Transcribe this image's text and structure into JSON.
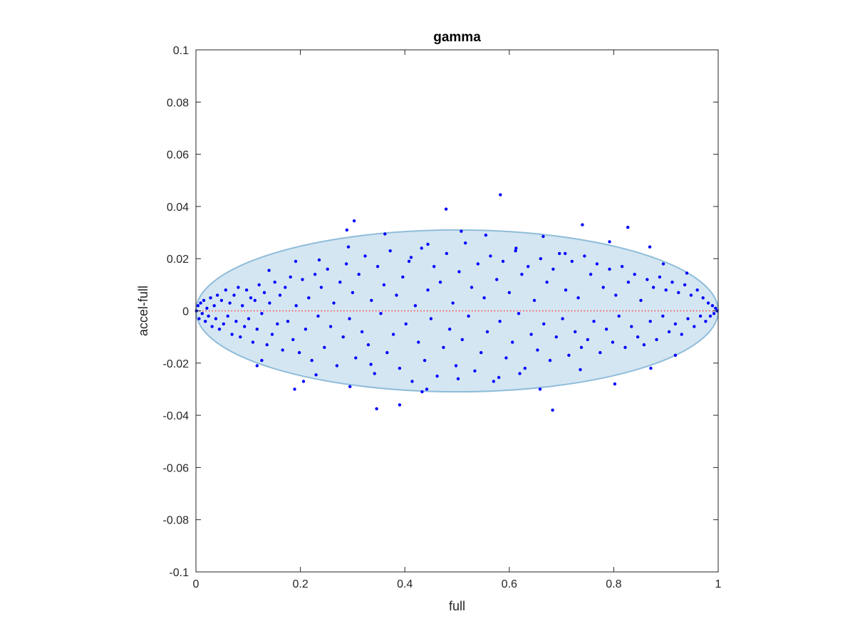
{
  "chart_data": {
    "type": "scatter",
    "title": "gamma",
    "xlabel": "full",
    "ylabel": "accel-full",
    "xlim": [
      0,
      1
    ],
    "ylim": [
      -0.1,
      0.1
    ],
    "x_ticks": [
      "0",
      "0.2",
      "0.4",
      "0.6",
      "0.8",
      "1"
    ],
    "y_ticks": [
      "0.1",
      "0.08",
      "0.06",
      "0.04",
      "0.02",
      "0",
      "-0.02",
      "-0.04",
      "-0.06",
      "-0.08",
      "-0.1"
    ],
    "grid": false,
    "colors": {
      "points": "#0000ff",
      "ellipse_fill": "#d4e6f2",
      "ellipse_edge": "#8fbdd9",
      "zero_line": "#ff3333"
    },
    "envelope_ellipse": {
      "center": [
        0.5,
        0.0
      ],
      "semi_x": 0.5,
      "semi_y": 0.031
    },
    "reference_line": {
      "y": 0,
      "x_range": [
        0,
        1
      ],
      "style": "dotted"
    },
    "series": [
      {
        "points": [
          [
            0.583,
            0.0445
          ],
          [
            0.479,
            0.039
          ],
          [
            0.303,
            0.0345
          ],
          [
            0.289,
            0.031
          ],
          [
            0.827,
            0.032
          ],
          [
            0.74,
            0.033
          ],
          [
            0.362,
            0.0295
          ],
          [
            0.508,
            0.0305
          ],
          [
            0.555,
            0.029
          ],
          [
            0.792,
            0.0265
          ],
          [
            0.869,
            0.0245
          ],
          [
            0.665,
            0.0285
          ],
          [
            0.444,
            0.0255
          ],
          [
            0.292,
            0.0245
          ],
          [
            0.191,
            0.019
          ],
          [
            0.14,
            0.0155
          ],
          [
            0.895,
            0.018
          ],
          [
            0.94,
            0.0145
          ],
          [
            0.707,
            0.022
          ],
          [
            0.613,
            0.024
          ],
          [
            0.412,
            0.0205
          ],
          [
            0.236,
            0.0195
          ],
          [
            0.346,
            -0.0375
          ],
          [
            0.39,
            -0.036
          ],
          [
            0.189,
            -0.03
          ],
          [
            0.206,
            -0.027
          ],
          [
            0.295,
            -0.029
          ],
          [
            0.433,
            -0.031
          ],
          [
            0.442,
            -0.03
          ],
          [
            0.659,
            -0.03
          ],
          [
            0.683,
            -0.038
          ],
          [
            0.802,
            -0.028
          ],
          [
            0.736,
            -0.0225
          ],
          [
            0.871,
            -0.022
          ],
          [
            0.918,
            -0.017
          ],
          [
            0.117,
            -0.021
          ],
          [
            0.126,
            -0.019
          ],
          [
            0.23,
            -0.0245
          ],
          [
            0.335,
            -0.0205
          ],
          [
            0.58,
            -0.0255
          ],
          [
            0.502,
            -0.026
          ],
          [
            0.62,
            -0.024
          ],
          [
            0.001,
            0.0
          ],
          [
            0.004,
            0.002
          ],
          [
            0.006,
            -0.003
          ],
          [
            0.009,
            0.003
          ],
          [
            0.012,
            -0.001
          ],
          [
            0.015,
            0.004
          ],
          [
            0.018,
            -0.004
          ],
          [
            0.021,
            0.001
          ],
          [
            0.024,
            -0.002
          ],
          [
            0.028,
            0.005
          ],
          [
            0.031,
            -0.006
          ],
          [
            0.035,
            0.002
          ],
          [
            0.038,
            -0.003
          ],
          [
            0.041,
            0.006
          ],
          [
            0.045,
            -0.007
          ],
          [
            0.049,
            0.004
          ],
          [
            0.053,
            -0.005
          ],
          [
            0.057,
            0.008
          ],
          [
            0.061,
            -0.002
          ],
          [
            0.065,
            0.003
          ],
          [
            0.069,
            -0.009
          ],
          [
            0.073,
            0.006
          ],
          [
            0.077,
            -0.004
          ],
          [
            0.081,
            0.009
          ],
          [
            0.085,
            -0.01
          ],
          [
            0.089,
            0.002
          ],
          [
            0.093,
            -0.006
          ],
          [
            0.097,
            0.008
          ],
          [
            0.101,
            -0.003
          ],
          [
            0.105,
            0.005
          ],
          [
            0.109,
            -0.012
          ],
          [
            0.113,
            0.004
          ],
          [
            0.117,
            -0.007
          ],
          [
            0.121,
            0.01
          ],
          [
            0.126,
            -0.001
          ],
          [
            0.131,
            0.007
          ],
          [
            0.136,
            -0.013
          ],
          [
            0.141,
            0.003
          ],
          [
            0.146,
            -0.009
          ],
          [
            0.151,
            0.011
          ],
          [
            0.156,
            -0.005
          ],
          [
            0.161,
            0.006
          ],
          [
            0.166,
            -0.015
          ],
          [
            0.171,
            0.009
          ],
          [
            0.176,
            -0.004
          ],
          [
            0.181,
            0.013
          ],
          [
            0.186,
            -0.011
          ],
          [
            0.192,
            0.002
          ],
          [
            0.198,
            -0.016
          ],
          [
            0.204,
            0.012
          ],
          [
            0.21,
            -0.007
          ],
          [
            0.216,
            0.005
          ],
          [
            0.222,
            -0.019
          ],
          [
            0.228,
            0.014
          ],
          [
            0.234,
            -0.002
          ],
          [
            0.24,
            0.009
          ],
          [
            0.246,
            -0.014
          ],
          [
            0.252,
            0.016
          ],
          [
            0.258,
            -0.006
          ],
          [
            0.264,
            0.003
          ],
          [
            0.27,
            -0.021
          ],
          [
            0.276,
            0.011
          ],
          [
            0.282,
            -0.01
          ],
          [
            0.288,
            0.018
          ],
          [
            0.294,
            -0.003
          ],
          [
            0.3,
            0.007
          ],
          [
            0.306,
            -0.018
          ],
          [
            0.312,
            0.014
          ],
          [
            0.318,
            -0.008
          ],
          [
            0.324,
            0.021
          ],
          [
            0.33,
            -0.013
          ],
          [
            0.336,
            0.004
          ],
          [
            0.342,
            -0.024
          ],
          [
            0.348,
            0.017
          ],
          [
            0.354,
            -0.001
          ],
          [
            0.36,
            0.01
          ],
          [
            0.366,
            -0.016
          ],
          [
            0.372,
            0.023
          ],
          [
            0.378,
            -0.009
          ],
          [
            0.384,
            0.006
          ],
          [
            0.39,
            -0.022
          ],
          [
            0.396,
            0.013
          ],
          [
            0.402,
            -0.005
          ],
          [
            0.408,
            0.019
          ],
          [
            0.414,
            -0.027
          ],
          [
            0.42,
            0.002
          ],
          [
            0.426,
            -0.012
          ],
          [
            0.432,
            0.024
          ],
          [
            0.438,
            -0.019
          ],
          [
            0.444,
            0.008
          ],
          [
            0.45,
            -0.003
          ],
          [
            0.456,
            0.017
          ],
          [
            0.462,
            -0.025
          ],
          [
            0.468,
            0.011
          ],
          [
            0.474,
            -0.014
          ],
          [
            0.48,
            0.022
          ],
          [
            0.486,
            -0.007
          ],
          [
            0.492,
            0.003
          ],
          [
            0.498,
            -0.021
          ],
          [
            0.504,
            0.015
          ],
          [
            0.51,
            -0.011
          ],
          [
            0.516,
            0.026
          ],
          [
            0.522,
            -0.002
          ],
          [
            0.528,
            0.009
          ],
          [
            0.534,
            -0.023
          ],
          [
            0.54,
            0.018
          ],
          [
            0.546,
            -0.016
          ],
          [
            0.552,
            0.005
          ],
          [
            0.558,
            -0.008
          ],
          [
            0.564,
            0.021
          ],
          [
            0.57,
            -0.027
          ],
          [
            0.576,
            0.012
          ],
          [
            0.582,
            -0.004
          ],
          [
            0.588,
            0.019
          ],
          [
            0.594,
            -0.018
          ],
          [
            0.6,
            0.007
          ],
          [
            0.606,
            -0.012
          ],
          [
            0.612,
            0.023
          ],
          [
            0.618,
            -0.001
          ],
          [
            0.624,
            0.014
          ],
          [
            0.63,
            -0.022
          ],
          [
            0.636,
            0.017
          ],
          [
            0.642,
            -0.009
          ],
          [
            0.648,
            0.004
          ],
          [
            0.654,
            -0.015
          ],
          [
            0.66,
            0.02
          ],
          [
            0.666,
            -0.005
          ],
          [
            0.672,
            0.011
          ],
          [
            0.678,
            -0.019
          ],
          [
            0.684,
            0.016
          ],
          [
            0.69,
            -0.01
          ],
          [
            0.696,
            0.022
          ],
          [
            0.702,
            -0.003
          ],
          [
            0.708,
            0.008
          ],
          [
            0.714,
            -0.017
          ],
          [
            0.72,
            0.019
          ],
          [
            0.726,
            -0.008
          ],
          [
            0.732,
            0.005
          ],
          [
            0.738,
            -0.014
          ],
          [
            0.744,
            0.021
          ],
          [
            0.75,
            -0.011
          ],
          [
            0.756,
            0.014
          ],
          [
            0.762,
            -0.004
          ],
          [
            0.768,
            0.018
          ],
          [
            0.774,
            -0.016
          ],
          [
            0.78,
            0.009
          ],
          [
            0.786,
            -0.007
          ],
          [
            0.792,
            0.016
          ],
          [
            0.798,
            -0.012
          ],
          [
            0.804,
            0.006
          ],
          [
            0.81,
            -0.002
          ],
          [
            0.816,
            0.017
          ],
          [
            0.822,
            -0.014
          ],
          [
            0.828,
            0.011
          ],
          [
            0.834,
            -0.006
          ],
          [
            0.84,
            0.014
          ],
          [
            0.846,
            -0.01
          ],
          [
            0.852,
            0.004
          ],
          [
            0.858,
            -0.013
          ],
          [
            0.864,
            0.012
          ],
          [
            0.87,
            -0.004
          ],
          [
            0.876,
            0.009
          ],
          [
            0.882,
            -0.011
          ],
          [
            0.888,
            0.013
          ],
          [
            0.894,
            -0.002
          ],
          [
            0.9,
            0.008
          ],
          [
            0.906,
            -0.008
          ],
          [
            0.912,
            0.011
          ],
          [
            0.918,
            -0.005
          ],
          [
            0.924,
            0.007
          ],
          [
            0.93,
            -0.009
          ],
          [
            0.936,
            0.01
          ],
          [
            0.942,
            -0.003
          ],
          [
            0.948,
            0.006
          ],
          [
            0.954,
            -0.006
          ],
          [
            0.96,
            0.008
          ],
          [
            0.966,
            -0.002
          ],
          [
            0.971,
            0.005
          ],
          [
            0.976,
            -0.004
          ],
          [
            0.981,
            0.003
          ],
          [
            0.985,
            -0.002
          ],
          [
            0.989,
            0.002
          ],
          [
            0.992,
            -0.001
          ],
          [
            0.995,
            0.001
          ],
          [
            0.998,
            0.0
          ]
        ]
      }
    ]
  }
}
